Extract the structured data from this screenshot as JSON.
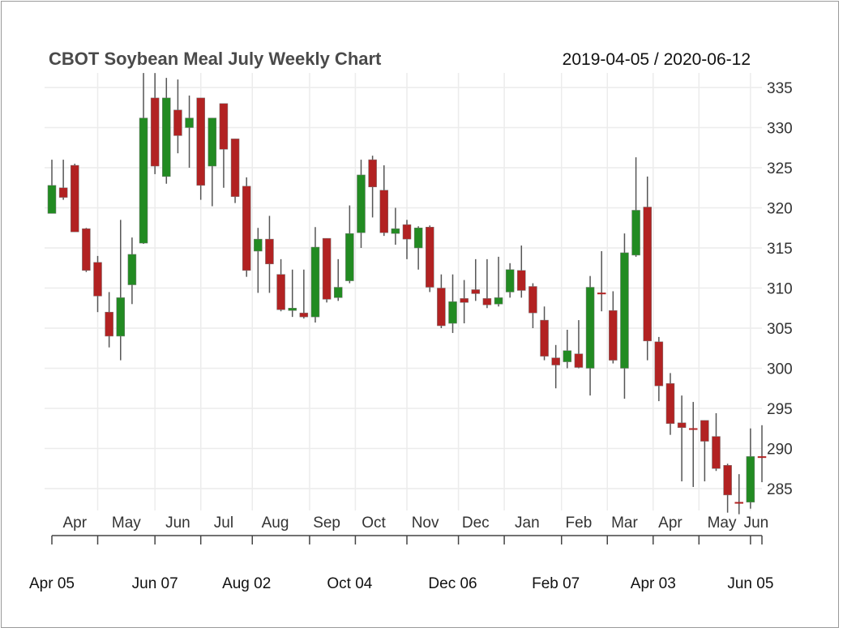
{
  "chart_data": {
    "type": "candlestick",
    "title": "CBOT Soybean Meal July Weekly Chart",
    "date_range": "2019-04-05 / 2020-06-12",
    "ylim": [
      282,
      337
    ],
    "y_ticks": [
      285,
      290,
      295,
      300,
      305,
      310,
      315,
      320,
      325,
      330,
      335
    ],
    "month_labels": [
      {
        "label": "Apr",
        "i": 2
      },
      {
        "label": "May",
        "i": 6.5
      },
      {
        "label": "Jun",
        "i": 11
      },
      {
        "label": "Jul",
        "i": 15
      },
      {
        "label": "Aug",
        "i": 19.5
      },
      {
        "label": "Sep",
        "i": 24
      },
      {
        "label": "Oct",
        "i": 28.1
      },
      {
        "label": "Nov",
        "i": 32.6
      },
      {
        "label": "Dec",
        "i": 37
      },
      {
        "label": "Jan",
        "i": 41.5
      },
      {
        "label": "Feb",
        "i": 46
      },
      {
        "label": "Mar",
        "i": 50
      },
      {
        "label": "Apr",
        "i": 54
      },
      {
        "label": "May",
        "i": 58.5
      },
      {
        "label": "Jun",
        "i": 61.5
      }
    ],
    "month_boundaries": [
      4,
      9,
      13,
      17.5,
      22.5,
      26.5,
      31,
      35.5,
      39.5,
      44.5,
      48.5,
      52.5,
      56.5,
      61
    ],
    "bottom_labels": [
      {
        "label": "Apr 05",
        "i": 0
      },
      {
        "label": "Jun 07",
        "i": 9
      },
      {
        "label": "Aug 02",
        "i": 17
      },
      {
        "label": "Oct 04",
        "i": 26
      },
      {
        "label": "Dec 06",
        "i": 35
      },
      {
        "label": "Feb 07",
        "i": 44
      },
      {
        "label": "Apr 03",
        "i": 52.5
      },
      {
        "label": "Jun 05",
        "i": 61
      }
    ],
    "bottom_ticks": [
      0,
      4,
      9,
      13,
      17.5,
      22.5,
      26.5,
      31,
      35.5,
      39.5,
      44.5,
      48.5,
      52.5,
      56.5,
      61,
      62
    ],
    "up_color": "#228b22",
    "down_color": "#b22222",
    "ohlc": [
      [
        319.3,
        326,
        319.3,
        322.8
      ],
      [
        322.5,
        326,
        321,
        321.3
      ],
      [
        325.3,
        325.5,
        317,
        317
      ],
      [
        317.4,
        317.5,
        312,
        312.2
      ],
      [
        313.2,
        314,
        307,
        309
      ],
      [
        307,
        309.5,
        302.6,
        304
      ],
      [
        304,
        318.5,
        301,
        308.8
      ],
      [
        310.4,
        316.3,
        308,
        314.2
      ],
      [
        315.6,
        336.8,
        315.5,
        331.2
      ],
      [
        333.7,
        336.8,
        324.2,
        325.2
      ],
      [
        323.9,
        336.2,
        323,
        333.7
      ],
      [
        332.2,
        336,
        326.8,
        329
      ],
      [
        330,
        334,
        325,
        331.2
      ],
      [
        333.7,
        333.7,
        321,
        322.8
      ],
      [
        325.2,
        331.2,
        320.2,
        331.2
      ],
      [
        333,
        333,
        322.5,
        327.3
      ],
      [
        328.6,
        328.6,
        320.6,
        321.4
      ],
      [
        322.7,
        323.8,
        311.4,
        312.2
      ],
      [
        314.6,
        317.5,
        309.4,
        316.1
      ],
      [
        316.1,
        319,
        309.4,
        313
      ],
      [
        311.7,
        313.6,
        307.1,
        307.3
      ],
      [
        307.2,
        312.3,
        306.4,
        307.5
      ],
      [
        306.9,
        312.3,
        306.2,
        306.4
      ],
      [
        306.4,
        317.6,
        305.7,
        315.1
      ],
      [
        316.2,
        316.2,
        308.2,
        308.6
      ],
      [
        308.8,
        313.6,
        308.4,
        310.1
      ],
      [
        310.9,
        320.3,
        310.6,
        316.8
      ],
      [
        316.9,
        326,
        315,
        324.1
      ],
      [
        326,
        326.5,
        318.8,
        322.6
      ],
      [
        322.2,
        325.3,
        316.5,
        316.9
      ],
      [
        316.8,
        320,
        315.4,
        317.4
      ],
      [
        317.9,
        318.5,
        313.6,
        316.1
      ],
      [
        315,
        317.7,
        312.3,
        317.5
      ],
      [
        317.6,
        317.8,
        309.5,
        310.1
      ],
      [
        310,
        311.7,
        305,
        305.3
      ],
      [
        305.6,
        311.7,
        304.4,
        308.3
      ],
      [
        308.7,
        311,
        305.6,
        308.2
      ],
      [
        309.8,
        313.6,
        308.4,
        309.3
      ],
      [
        308.7,
        313.6,
        307.5,
        307.9
      ],
      [
        308,
        313.9,
        307.7,
        308.8
      ],
      [
        309.5,
        313.1,
        308.8,
        312.3
      ],
      [
        312.2,
        315.3,
        308.8,
        309.7
      ],
      [
        310.2,
        310.6,
        305,
        306.9
      ],
      [
        306,
        307.7,
        301,
        301.5
      ],
      [
        301.3,
        302.9,
        297.5,
        300.4
      ],
      [
        300.8,
        304.8,
        300,
        302.2
      ],
      [
        301.8,
        306,
        300,
        300.1
      ],
      [
        300,
        311.5,
        296.6,
        310.1
      ],
      [
        309.4,
        314.6,
        307.1,
        309.4
      ],
      [
        307.2,
        309.6,
        300.6,
        301
      ],
      [
        300,
        316.8,
        296.2,
        314.4
      ],
      [
        314.1,
        326.3,
        313.9,
        319.7
      ],
      [
        320.1,
        323.9,
        301,
        303.4
      ],
      [
        303.3,
        303.9,
        295.9,
        297.8
      ],
      [
        298.1,
        299.4,
        291.7,
        293.1
      ],
      [
        293.2,
        296.6,
        285.9,
        292.6
      ],
      [
        292.5,
        295.8,
        285.2,
        292.5
      ],
      [
        293.5,
        293.5,
        285.9,
        290.9
      ],
      [
        291.5,
        294.4,
        287.2,
        287.5
      ],
      [
        287.9,
        288.1,
        282,
        284.2
      ],
      [
        283.3,
        286.8,
        281.8,
        283.3
      ],
      [
        283.3,
        292.5,
        282.5,
        289
      ],
      [
        289,
        292.9,
        285.8,
        289
      ]
    ]
  }
}
